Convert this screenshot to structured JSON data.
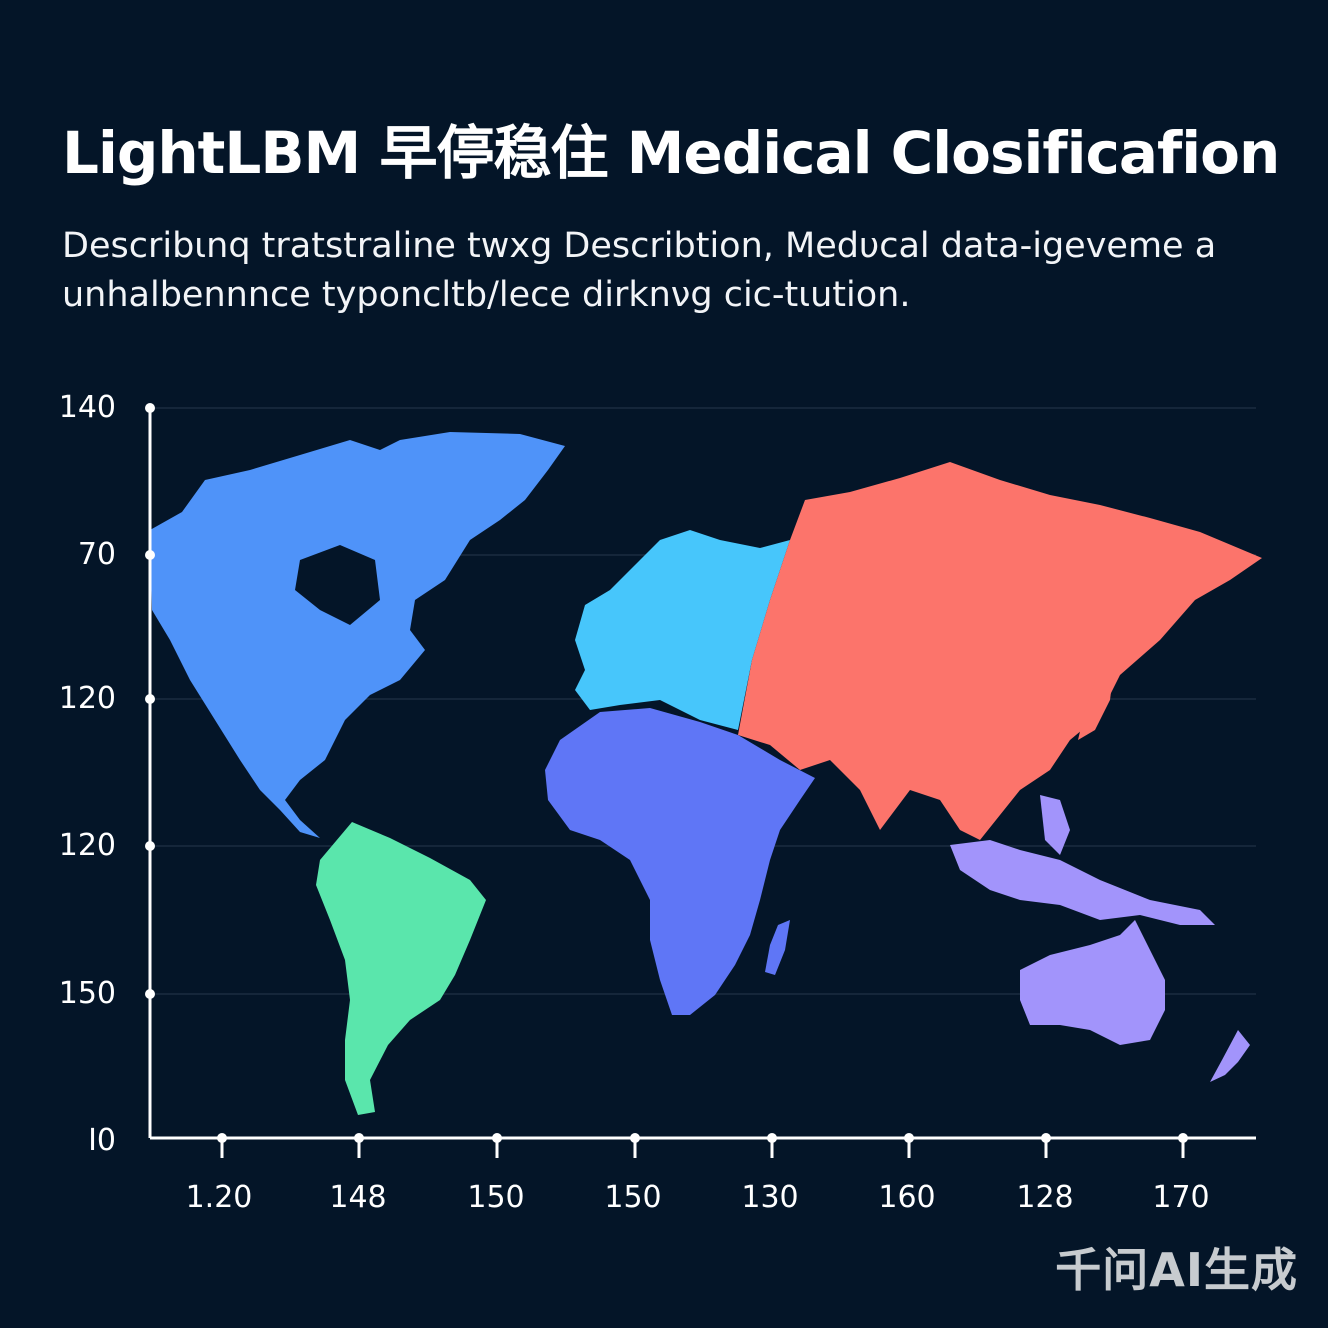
{
  "title": "LightLBM 早停稳住 Medical Closificafion",
  "subtitle": "Describιnq tratstraline twxg Describtion, Medυcal data-igeveme a unhalbennnce typoncltb/lece dirknνg cic-tιution.",
  "axes": {
    "y_ticks": [
      "140",
      "70",
      "120",
      "120",
      "150",
      "I0"
    ],
    "x_ticks": [
      "1.20",
      "148",
      "150",
      "150",
      "130",
      "160",
      "128",
      "170"
    ]
  },
  "regions": [
    {
      "name": "north-america",
      "color": "#4f93f9"
    },
    {
      "name": "south-america",
      "color": "#5ae6ac"
    },
    {
      "name": "europe",
      "color": "#47c6fb"
    },
    {
      "name": "africa",
      "color": "#5f76f6"
    },
    {
      "name": "asia",
      "color": "#fc746b"
    },
    {
      "name": "oceania",
      "color": "#a294fb"
    }
  ],
  "watermark": "千问AI生成"
}
